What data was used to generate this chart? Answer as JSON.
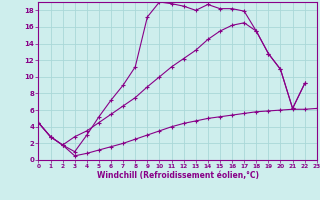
{
  "xlabel": "Windchill (Refroidissement éolien,°C)",
  "bg_color": "#ceeeed",
  "line_color": "#880088",
  "grid_color": "#aad8d8",
  "xlim": [
    0,
    23
  ],
  "ylim": [
    0,
    19
  ],
  "xticks": [
    0,
    1,
    2,
    3,
    4,
    5,
    6,
    7,
    8,
    9,
    10,
    11,
    12,
    13,
    14,
    15,
    16,
    17,
    18,
    19,
    20,
    21,
    22,
    23
  ],
  "yticks": [
    0,
    2,
    4,
    6,
    8,
    10,
    12,
    14,
    16,
    18
  ],
  "series1_x": [
    0,
    1,
    2,
    3,
    4,
    5,
    6,
    7,
    8,
    9,
    10,
    11,
    12,
    13,
    14,
    15,
    16,
    17,
    18,
    19,
    20,
    21,
    22
  ],
  "series1_y": [
    4.5,
    2.8,
    1.8,
    1.0,
    3.0,
    5.2,
    7.2,
    9.0,
    11.2,
    17.2,
    19.0,
    18.8,
    18.5,
    18.0,
    18.7,
    18.2,
    18.2,
    17.9,
    15.5,
    12.8,
    10.9,
    6.2,
    9.2
  ],
  "series2_x": [
    0,
    1,
    2,
    3,
    4,
    5,
    6,
    7,
    8,
    9,
    10,
    11,
    12,
    13,
    14,
    15,
    16,
    17,
    18,
    19,
    20,
    21,
    22
  ],
  "series2_y": [
    4.5,
    2.8,
    1.8,
    2.8,
    3.5,
    4.5,
    5.5,
    6.5,
    7.5,
    8.8,
    10.0,
    11.2,
    12.2,
    13.2,
    14.5,
    15.5,
    16.2,
    16.5,
    15.5,
    12.8,
    10.9,
    6.2,
    9.2
  ],
  "series3_x": [
    0,
    1,
    2,
    3,
    4,
    5,
    6,
    7,
    8,
    9,
    10,
    11,
    12,
    13,
    14,
    15,
    16,
    17,
    18,
    19,
    20,
    21,
    22,
    23
  ],
  "series3_y": [
    4.5,
    2.8,
    1.8,
    0.5,
    0.8,
    1.2,
    1.6,
    2.0,
    2.5,
    3.0,
    3.5,
    4.0,
    4.4,
    4.7,
    5.0,
    5.2,
    5.4,
    5.6,
    5.8,
    5.9,
    6.0,
    6.1,
    6.1,
    6.2
  ]
}
